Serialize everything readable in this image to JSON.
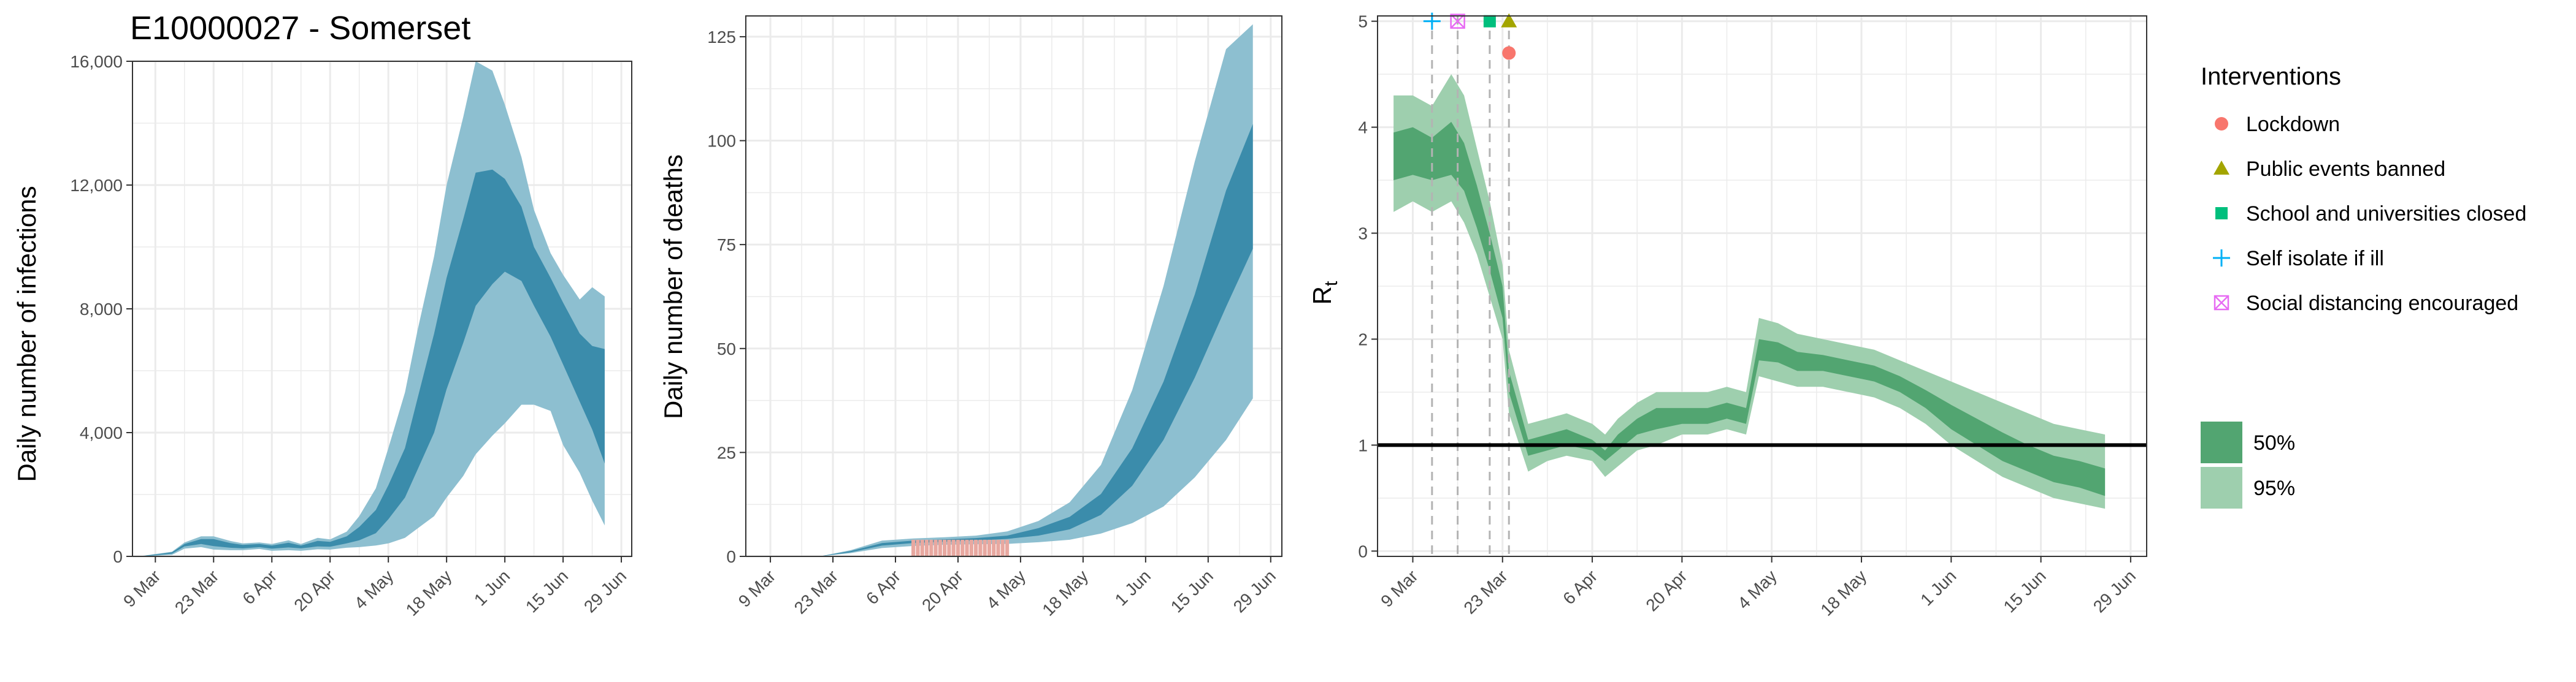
{
  "colors": {
    "infection_95": "#8dbfd0",
    "infection_50": "#3b8cab",
    "rt_95": "#9ecfae",
    "rt_50": "#52a571",
    "observed_deaths": "#e8a8a0",
    "lockdown": "#f8766d",
    "public_events_banned": "#a3a500",
    "school_closed": "#00bf7d",
    "self_isolate": "#00b0f6",
    "social_distancing": "#e76bf3",
    "grid": "#ebebeb",
    "reference_line": "#000000"
  },
  "chart_data": [
    {
      "type": "area",
      "title": "E10000027 - Somerset",
      "xlabel": "",
      "ylabel": "Daily number of infections",
      "x_ticks": [
        "9 Mar",
        "23 Mar",
        "6 Apr",
        "20 Apr",
        "4 May",
        "18 May",
        "1 Jun",
        "15 Jun",
        "29 Jun"
      ],
      "y_ticks": [
        "0",
        "4,000",
        "8,000",
        "12,000",
        "16,000"
      ],
      "ylim": [
        0,
        16000
      ],
      "x": [
        "2020-03-06",
        "2020-03-13",
        "2020-03-16",
        "2020-03-20",
        "2020-03-23",
        "2020-03-27",
        "2020-03-30",
        "2020-04-03",
        "2020-04-06",
        "2020-04-10",
        "2020-04-13",
        "2020-04-17",
        "2020-04-20",
        "2020-04-24",
        "2020-04-27",
        "2020-05-01",
        "2020-05-04",
        "2020-05-08",
        "2020-05-11",
        "2020-05-15",
        "2020-05-18",
        "2020-05-22",
        "2020-05-25",
        "2020-05-29",
        "2020-06-01",
        "2020-06-05",
        "2020-06-08",
        "2020-06-12",
        "2020-06-15",
        "2020-06-19",
        "2020-06-22",
        "2020-06-25"
      ],
      "series": [
        {
          "band": "95%",
          "lower": [
            0,
            50,
            250,
            300,
            220,
            200,
            200,
            240,
            180,
            200,
            180,
            230,
            220,
            280,
            300,
            350,
            420,
            600,
            900,
            1300,
            1900,
            2600,
            3300,
            3900,
            4300,
            4900,
            4900,
            4700,
            3600,
            2700,
            1800,
            1000
          ],
          "upper": [
            20,
            150,
            450,
            650,
            650,
            500,
            420,
            450,
            400,
            520,
            400,
            600,
            550,
            800,
            1300,
            2200,
            3500,
            5300,
            7300,
            9700,
            12000,
            14200,
            16000,
            15700,
            14600,
            12900,
            11200,
            9800,
            9100,
            8300,
            8700,
            8400
          ]
        },
        {
          "band": "50%",
          "lower": [
            5,
            90,
            320,
            400,
            330,
            280,
            260,
            300,
            250,
            290,
            260,
            320,
            310,
            420,
            520,
            750,
            1200,
            1900,
            2800,
            4000,
            5400,
            6900,
            8100,
            8800,
            9200,
            8900,
            8100,
            7100,
            6200,
            5000,
            4100,
            3000
          ],
          "upper": [
            12,
            130,
            400,
            560,
            560,
            430,
            370,
            400,
            350,
            440,
            350,
            500,
            470,
            650,
            950,
            1500,
            2300,
            3500,
            5100,
            7200,
            9000,
            10900,
            12400,
            12500,
            12200,
            11300,
            10000,
            9000,
            8200,
            7200,
            6800,
            6700
          ]
        }
      ]
    },
    {
      "type": "area",
      "title": "",
      "xlabel": "",
      "ylabel": "Daily number of deaths",
      "x_ticks": [
        "9 Mar",
        "23 Mar",
        "6 Apr",
        "20 Apr",
        "4 May",
        "18 May",
        "1 Jun",
        "15 Jun",
        "29 Jun"
      ],
      "y_ticks": [
        "0",
        "25",
        "50",
        "75",
        "100",
        "125"
      ],
      "ylim": [
        0,
        130
      ],
      "x": [
        "2020-03-06",
        "2020-03-20",
        "2020-03-27",
        "2020-04-03",
        "2020-04-10",
        "2020-04-17",
        "2020-04-24",
        "2020-05-01",
        "2020-05-08",
        "2020-05-15",
        "2020-05-22",
        "2020-05-29",
        "2020-06-05",
        "2020-06-12",
        "2020-06-19",
        "2020-06-25"
      ],
      "series": [
        {
          "band": "95%",
          "lower": [
            0,
            0,
            0.8,
            2.0,
            2.5,
            2.8,
            2.9,
            3.0,
            3.4,
            4.0,
            5.5,
            8.0,
            12.0,
            19.0,
            28.0,
            38.0
          ],
          "upper": [
            0,
            0,
            1.5,
            3.8,
            4.3,
            4.6,
            5.0,
            6.0,
            8.5,
            13.0,
            22.0,
            40.0,
            65.0,
            95.0,
            122.0,
            128.0
          ]
        },
        {
          "band": "50%",
          "lower": [
            0,
            0,
            1.0,
            2.6,
            3.2,
            3.5,
            3.8,
            4.2,
            5.0,
            6.5,
            10.0,
            17.0,
            28.0,
            43.0,
            60.0,
            74.0
          ],
          "upper": [
            0,
            0,
            1.3,
            3.2,
            3.8,
            4.1,
            4.4,
            5.0,
            6.8,
            9.5,
            15.0,
            26.0,
            42.0,
            63.0,
            88.0,
            104.0
          ]
        }
      ],
      "observed_bars": {
        "start": "2020-04-10",
        "end": "2020-05-01",
        "value": 4
      }
    },
    {
      "type": "area",
      "title": "",
      "xlabel": "",
      "ylabel": "R",
      "ylabel_subscript": "t",
      "x_ticks": [
        "9 Mar",
        "23 Mar",
        "6 Apr",
        "20 Apr",
        "4 May",
        "18 May",
        "1 Jun",
        "15 Jun",
        "29 Jun"
      ],
      "y_ticks": [
        "0",
        "1",
        "2",
        "3",
        "4",
        "5"
      ],
      "ylim": [
        -0.05,
        5.05
      ],
      "x": [
        "2020-03-06",
        "2020-03-09",
        "2020-03-12",
        "2020-03-15",
        "2020-03-17",
        "2020-03-19",
        "2020-03-21",
        "2020-03-23",
        "2020-03-24",
        "2020-03-27",
        "2020-03-30",
        "2020-04-02",
        "2020-04-06",
        "2020-04-08",
        "2020-04-10",
        "2020-04-13",
        "2020-04-16",
        "2020-04-20",
        "2020-04-24",
        "2020-04-27",
        "2020-04-30",
        "2020-05-02",
        "2020-05-05",
        "2020-05-08",
        "2020-05-12",
        "2020-05-16",
        "2020-05-20",
        "2020-05-24",
        "2020-05-28",
        "2020-06-01",
        "2020-06-05",
        "2020-06-09",
        "2020-06-13",
        "2020-06-17",
        "2020-06-21",
        "2020-06-25"
      ],
      "series": [
        {
          "band": "95%",
          "lower": [
            3.2,
            3.3,
            3.2,
            3.3,
            3.1,
            2.8,
            2.4,
            2.0,
            1.3,
            0.75,
            0.85,
            0.9,
            0.85,
            0.7,
            0.8,
            0.95,
            1.0,
            1.1,
            1.1,
            1.15,
            1.1,
            1.65,
            1.6,
            1.55,
            1.55,
            1.5,
            1.45,
            1.35,
            1.2,
            1.0,
            0.85,
            0.7,
            0.6,
            0.5,
            0.45,
            0.4
          ],
          "upper": [
            4.3,
            4.3,
            4.2,
            4.5,
            4.3,
            3.8,
            3.3,
            2.7,
            1.9,
            1.2,
            1.25,
            1.3,
            1.2,
            1.1,
            1.25,
            1.4,
            1.5,
            1.5,
            1.5,
            1.55,
            1.5,
            2.2,
            2.15,
            2.05,
            2.0,
            1.95,
            1.9,
            1.8,
            1.7,
            1.6,
            1.5,
            1.4,
            1.3,
            1.2,
            1.15,
            1.1
          ]
        },
        {
          "band": "50%",
          "lower": [
            3.5,
            3.55,
            3.5,
            3.55,
            3.4,
            3.05,
            2.65,
            2.2,
            1.5,
            0.9,
            0.95,
            1.0,
            0.95,
            0.85,
            0.95,
            1.1,
            1.15,
            1.2,
            1.2,
            1.25,
            1.2,
            1.8,
            1.78,
            1.7,
            1.7,
            1.65,
            1.6,
            1.5,
            1.35,
            1.15,
            1.0,
            0.85,
            0.75,
            0.65,
            0.6,
            0.52
          ],
          "upper": [
            3.95,
            4.0,
            3.9,
            4.05,
            3.85,
            3.45,
            3.0,
            2.5,
            1.7,
            1.05,
            1.1,
            1.15,
            1.05,
            0.95,
            1.1,
            1.25,
            1.35,
            1.35,
            1.35,
            1.4,
            1.35,
            2.0,
            1.97,
            1.88,
            1.85,
            1.8,
            1.75,
            1.65,
            1.52,
            1.38,
            1.25,
            1.12,
            1.0,
            0.9,
            0.85,
            0.78
          ]
        }
      ],
      "reference_line": 1,
      "interventions": [
        {
          "name": "Lockdown",
          "date": "2020-03-24",
          "y": 4.7,
          "color": "#f8766d",
          "marker": "circle"
        },
        {
          "name": "Public events banned",
          "date": "2020-03-24",
          "y": 5.0,
          "color": "#a3a500",
          "marker": "triangle"
        },
        {
          "name": "School and universities closed",
          "date": "2020-03-21",
          "y": 5.0,
          "color": "#00bf7d",
          "marker": "square"
        },
        {
          "name": "Self isolate if ill",
          "date": "2020-03-12",
          "y": 5.0,
          "color": "#00b0f6",
          "marker": "plus"
        },
        {
          "name": "Social distancing encouraged",
          "date": "2020-03-16",
          "y": 5.0,
          "color": "#e76bf3",
          "marker": "boxed-x"
        }
      ]
    }
  ],
  "legend": {
    "interventions_title": "Interventions",
    "interventions": [
      {
        "label": "Lockdown",
        "color": "#f8766d",
        "marker": "circle"
      },
      {
        "label": "Public events banned",
        "color": "#a3a500",
        "marker": "triangle"
      },
      {
        "label": "School and universities closed",
        "color": "#00bf7d",
        "marker": "square"
      },
      {
        "label": "Self isolate if ill",
        "color": "#00b0f6",
        "marker": "plus"
      },
      {
        "label": "Social distancing encouraged",
        "color": "#e76bf3",
        "marker": "boxed-x"
      }
    ],
    "bands": [
      {
        "label": "50%",
        "color": "#52a571"
      },
      {
        "label": "95%",
        "color": "#9ecfae"
      }
    ]
  }
}
